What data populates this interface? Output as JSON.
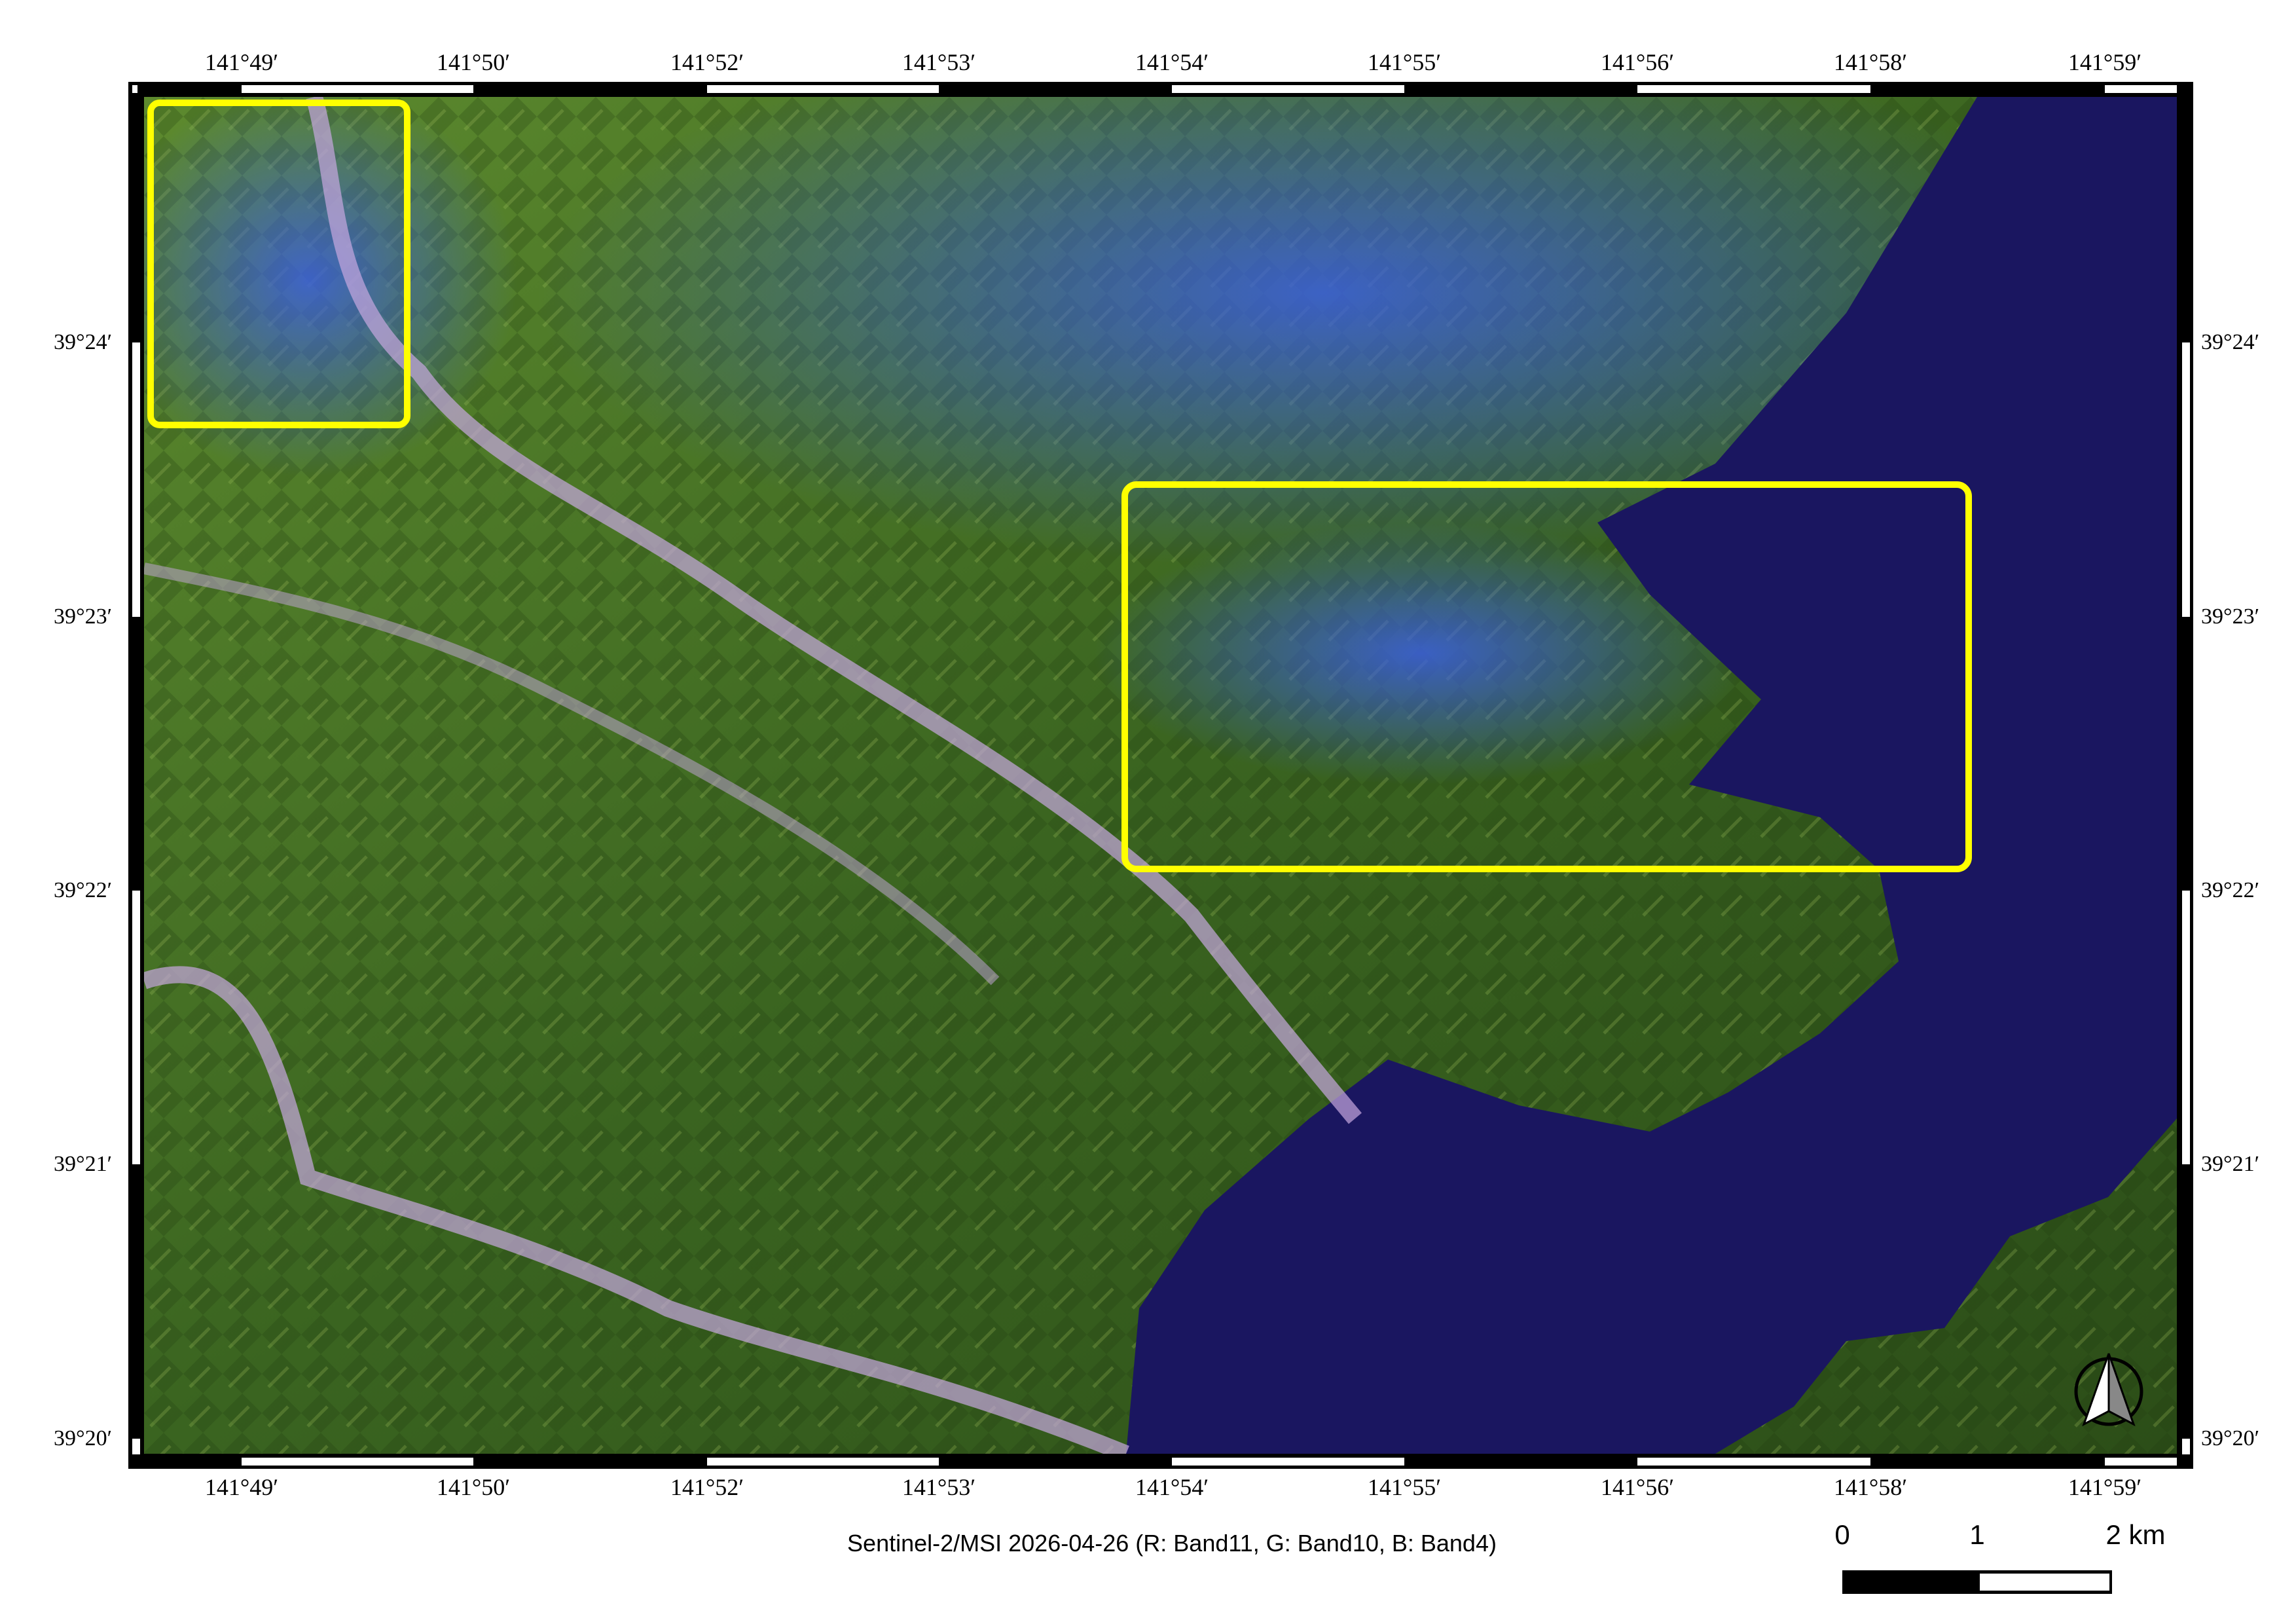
{
  "map": {
    "caption": "Sentinel-2/MSI 2026-04-26 (R: Band11, G: Band10, B: Band4)",
    "longitude_ticks": [
      "141°49′",
      "141°50′",
      "141°52′",
      "141°53′",
      "141°54′",
      "141°55′",
      "141°56′",
      "141°58′",
      "141°59′"
    ],
    "latitude_ticks": [
      "39°24′",
      "39°23′",
      "39°22′",
      "39°21′",
      "39°20′"
    ],
    "scale_bar": {
      "labels": [
        "0",
        "1",
        "2 km"
      ]
    },
    "north_arrow": "north-arrow-icon",
    "highlight_color": "#ffff00",
    "ocean_color": "#1a1660",
    "land_color": "#3f6a1e"
  }
}
